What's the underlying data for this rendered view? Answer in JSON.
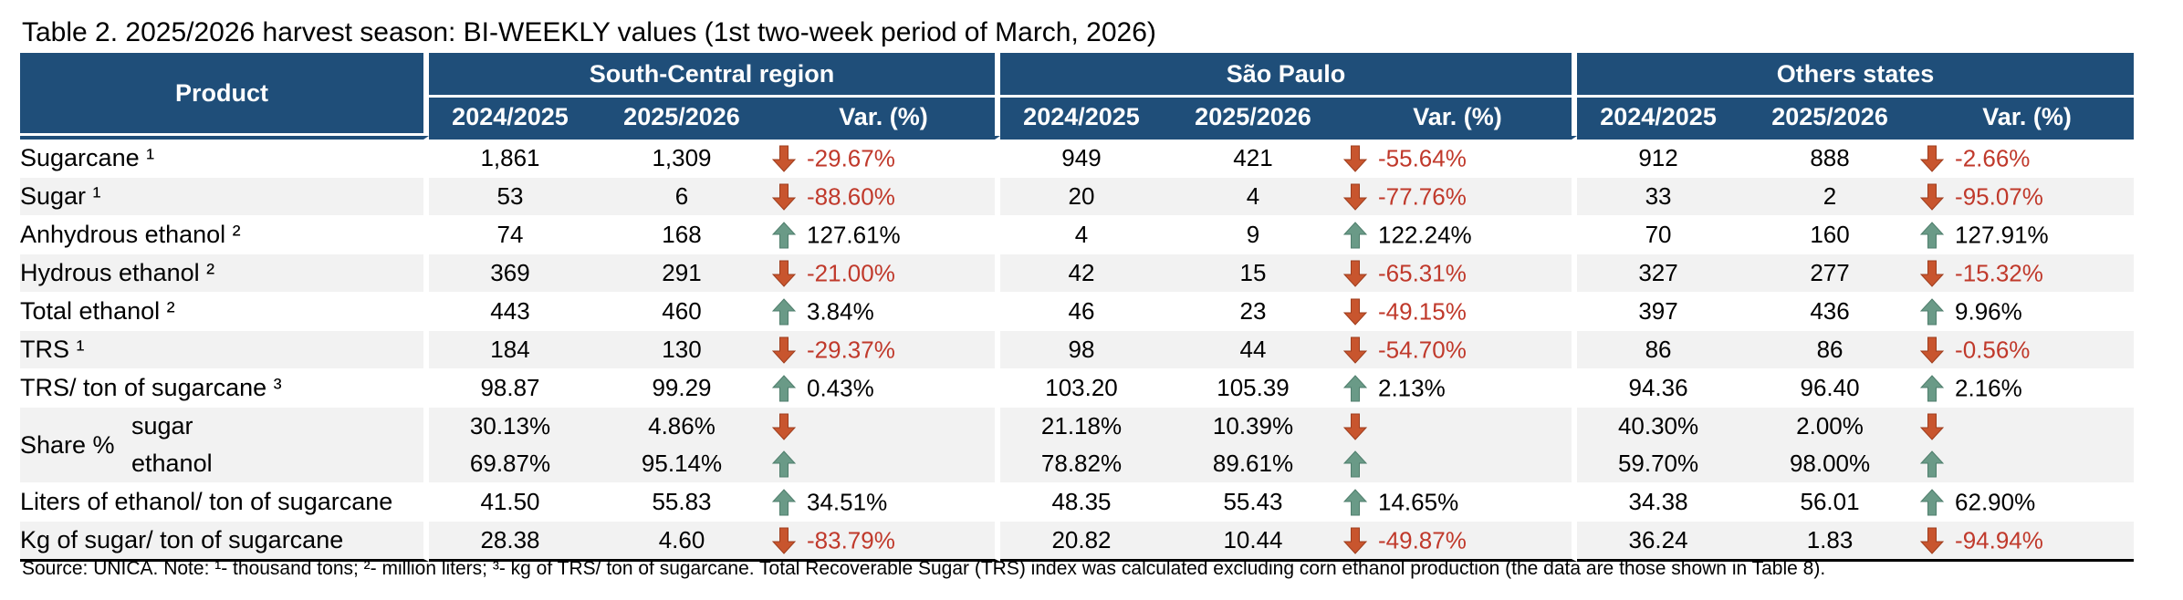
{
  "title": "Table 2. 2025/2026 harvest season: BI-WEEKLY values (1st two-week period of March, 2026)",
  "header": {
    "product": "Product",
    "regions": [
      "South-Central region",
      "São Paulo",
      "Others states"
    ],
    "sub_columns": [
      "2024/2025",
      "2025/2026",
      "Var. (%)"
    ]
  },
  "rows": [
    {
      "label": "Sugarcane ¹",
      "cells": [
        {
          "a": "1,861",
          "b": "1,309",
          "dir": "down",
          "var": "-29.67%"
        },
        {
          "a": "949",
          "b": "421",
          "dir": "down",
          "var": "-55.64%"
        },
        {
          "a": "912",
          "b": "888",
          "dir": "down",
          "var": "-2.66%"
        }
      ]
    },
    {
      "label": "Sugar ¹",
      "cells": [
        {
          "a": "53",
          "b": "6",
          "dir": "down",
          "var": "-88.60%"
        },
        {
          "a": "20",
          "b": "4",
          "dir": "down",
          "var": "-77.76%"
        },
        {
          "a": "33",
          "b": "2",
          "dir": "down",
          "var": "-95.07%"
        }
      ]
    },
    {
      "label": "Anhydrous ethanol ²",
      "cells": [
        {
          "a": "74",
          "b": "168",
          "dir": "up",
          "var": "127.61%"
        },
        {
          "a": "4",
          "b": "9",
          "dir": "up",
          "var": "122.24%"
        },
        {
          "a": "70",
          "b": "160",
          "dir": "up",
          "var": "127.91%"
        }
      ]
    },
    {
      "label": "Hydrous ethanol ²",
      "cells": [
        {
          "a": "369",
          "b": "291",
          "dir": "down",
          "var": "-21.00%"
        },
        {
          "a": "42",
          "b": "15",
          "dir": "down",
          "var": "-65.31%"
        },
        {
          "a": "327",
          "b": "277",
          "dir": "down",
          "var": "-15.32%"
        }
      ]
    },
    {
      "label": "Total ethanol ²",
      "cells": [
        {
          "a": "443",
          "b": "460",
          "dir": "up",
          "var": "3.84%"
        },
        {
          "a": "46",
          "b": "23",
          "dir": "down",
          "var": "-49.15%"
        },
        {
          "a": "397",
          "b": "436",
          "dir": "up",
          "var": "9.96%"
        }
      ]
    },
    {
      "label": "TRS ¹",
      "cells": [
        {
          "a": "184",
          "b": "130",
          "dir": "down",
          "var": "-29.37%"
        },
        {
          "a": "98",
          "b": "44",
          "dir": "down",
          "var": "-54.70%"
        },
        {
          "a": "86",
          "b": "86",
          "dir": "down",
          "var": "-0.56%"
        }
      ]
    },
    {
      "label": "TRS/ ton of sugarcane ³",
      "cells": [
        {
          "a": "98.87",
          "b": "99.29",
          "dir": "up",
          "var": "0.43%"
        },
        {
          "a": "103.20",
          "b": "105.39",
          "dir": "up",
          "var": "2.13%"
        },
        {
          "a": "94.36",
          "b": "96.40",
          "dir": "up",
          "var": "2.16%"
        }
      ]
    }
  ],
  "share": {
    "label": "Share %",
    "rows": [
      {
        "label": "sugar",
        "cells": [
          {
            "a": "30.13%",
            "b": "4.86%",
            "dir": "down",
            "var": ""
          },
          {
            "a": "21.18%",
            "b": "10.39%",
            "dir": "down",
            "var": ""
          },
          {
            "a": "40.30%",
            "b": "2.00%",
            "dir": "down",
            "var": ""
          }
        ]
      },
      {
        "label": "ethanol",
        "cells": [
          {
            "a": "69.87%",
            "b": "95.14%",
            "dir": "up",
            "var": ""
          },
          {
            "a": "78.82%",
            "b": "89.61%",
            "dir": "up",
            "var": ""
          },
          {
            "a": "59.70%",
            "b": "98.00%",
            "dir": "up",
            "var": ""
          }
        ]
      }
    ]
  },
  "tail_rows": [
    {
      "label": "Liters of ethanol/ ton of sugarcane",
      "cells": [
        {
          "a": "41.50",
          "b": "55.83",
          "dir": "up",
          "var": "34.51%"
        },
        {
          "a": "48.35",
          "b": "55.43",
          "dir": "up",
          "var": "14.65%"
        },
        {
          "a": "34.38",
          "b": "56.01",
          "dir": "up",
          "var": "62.90%"
        }
      ]
    },
    {
      "label": "Kg of sugar/ ton of sugarcane",
      "cells": [
        {
          "a": "28.38",
          "b": "4.60",
          "dir": "down",
          "var": "-83.79%"
        },
        {
          "a": "20.82",
          "b": "10.44",
          "dir": "down",
          "var": "-49.87%"
        },
        {
          "a": "36.24",
          "b": "1.83",
          "dir": "down",
          "var": "-94.94%"
        }
      ]
    }
  ],
  "source": "Source: UNICA. Note: ¹- thousand tons; ²- million liters; ³- kg of TRS/ ton of sugarcane. Total Recoverable Sugar (TRS) index was calculated excluding corn ethanol production (the data are those shown in Table 8).",
  "colors": {
    "header_bg": "#1f4e79",
    "arrow_up": "#6a9a87",
    "arrow_down": "#c8552e",
    "negative_text": "#c0392b",
    "stripe": "#f2f2f2"
  },
  "icons": {
    "up": "arrow-up-icon",
    "down": "arrow-down-icon"
  }
}
